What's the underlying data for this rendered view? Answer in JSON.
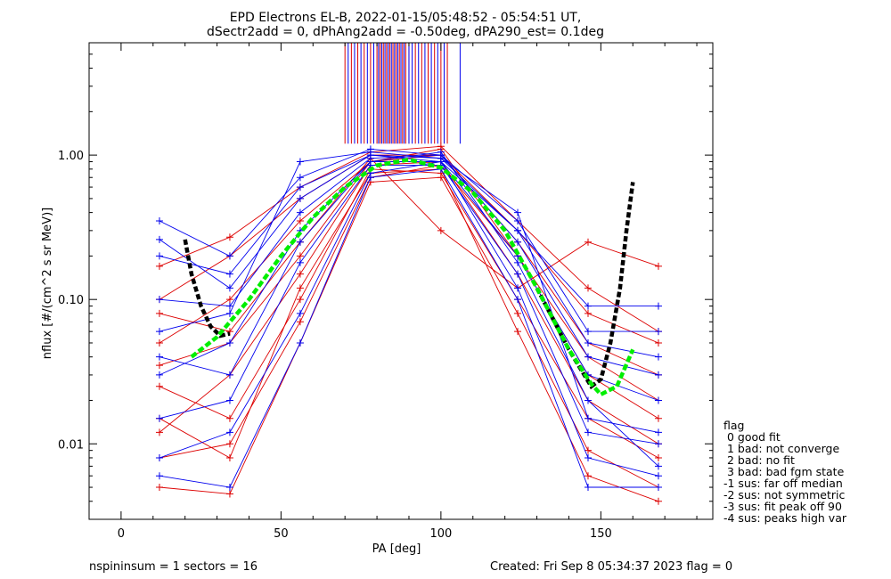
{
  "chart_data": {
    "type": "line",
    "title_line1": "EPD Electrons EL-B, 2022-01-15/05:48:52 - 05:54:51 UT,",
    "title_line2": "dSectr2add = 0, dPhAng2add = -0.50deg, dPA290_est=   0.1deg",
    "xlabel": "PA [deg]",
    "ylabel": "nflux [#/(cm^2 s sr MeV)]",
    "xlim": [
      -10,
      185
    ],
    "ylim": [
      0.003,
      6
    ],
    "yscale": "log",
    "x_ticks": [
      0,
      50,
      100,
      150
    ],
    "x_tick_labels": [
      "0",
      "50",
      "100",
      "150"
    ],
    "y_ticks": [
      0.01,
      0.1,
      1
    ],
    "y_tick_labels": [
      "0.01",
      "0.10",
      "1.00"
    ],
    "colors": {
      "red": "#dd0000",
      "blue": "#0000ee",
      "fit": "#00ee00",
      "model": "#000000"
    },
    "series": [
      {
        "color": "red",
        "x": [
          12,
          34,
          56,
          78,
          100,
          124,
          146,
          168
        ],
        "y": [
          0.05,
          0.1,
          0.35,
          0.9,
          1.0,
          0.25,
          0.05,
          0.03
        ]
      },
      {
        "color": "red",
        "x": [
          12,
          34,
          56,
          78,
          100,
          124,
          146,
          168
        ],
        "y": [
          0.012,
          0.03,
          0.15,
          0.85,
          0.9,
          0.15,
          0.02,
          0.01
        ]
      },
      {
        "color": "red",
        "x": [
          12,
          34,
          56,
          78,
          100,
          124,
          146,
          168
        ],
        "y": [
          0.17,
          0.27,
          0.6,
          1.05,
          1.15,
          0.35,
          0.12,
          0.06
        ]
      },
      {
        "color": "red",
        "x": [
          12,
          34,
          56,
          78,
          100,
          124,
          146,
          168
        ],
        "y": [
          0.005,
          0.0045,
          0.05,
          0.65,
          0.7,
          0.08,
          0.009,
          0.005
        ]
      },
      {
        "color": "red",
        "x": [
          12,
          34,
          56,
          78,
          100,
          124,
          146,
          168
        ],
        "y": [
          0.08,
          0.06,
          0.25,
          0.95,
          0.3,
          0.12,
          0.25,
          0.17
        ]
      },
      {
        "color": "red",
        "x": [
          12,
          34,
          56,
          78,
          100,
          124,
          146,
          168
        ],
        "y": [
          0.025,
          0.015,
          0.1,
          0.8,
          0.75,
          0.1,
          0.015,
          0.008
        ]
      },
      {
        "color": "red",
        "x": [
          12,
          34,
          56,
          78,
          100,
          124,
          146,
          168
        ],
        "y": [
          0.1,
          0.2,
          0.5,
          1.0,
          1.0,
          0.3,
          0.08,
          0.05
        ]
      },
      {
        "color": "red",
        "x": [
          12,
          34,
          56,
          78,
          100,
          124,
          146,
          168
        ],
        "y": [
          0.008,
          0.01,
          0.07,
          0.7,
          0.85,
          0.2,
          0.04,
          0.02
        ]
      },
      {
        "color": "red",
        "x": [
          12,
          34,
          56,
          78,
          100,
          124,
          146,
          168
        ],
        "y": [
          0.035,
          0.05,
          0.2,
          0.9,
          1.1,
          0.2,
          0.03,
          0.015
        ]
      },
      {
        "color": "red",
        "x": [
          12,
          34,
          56,
          78,
          100,
          124,
          146,
          168
        ],
        "y": [
          0.015,
          0.008,
          0.12,
          0.75,
          0.8,
          0.06,
          0.006,
          0.004
        ]
      },
      {
        "color": "blue",
        "x": [
          12,
          34,
          56,
          78,
          100,
          124,
          146,
          168
        ],
        "y": [
          0.35,
          0.2,
          0.7,
          1.1,
          1.0,
          0.35,
          0.06,
          0.06
        ]
      },
      {
        "color": "blue",
        "x": [
          12,
          34,
          56,
          78,
          100,
          124,
          146,
          168
        ],
        "y": [
          0.03,
          0.05,
          0.3,
          0.9,
          0.9,
          0.2,
          0.03,
          0.02
        ]
      },
      {
        "color": "blue",
        "x": [
          12,
          34,
          56,
          78,
          100,
          124,
          146,
          168
        ],
        "y": [
          0.26,
          0.12,
          0.5,
          1.0,
          0.95,
          0.3,
          0.09,
          0.09
        ]
      },
      {
        "color": "blue",
        "x": [
          12,
          34,
          56,
          78,
          100,
          124,
          146,
          168
        ],
        "y": [
          0.006,
          0.005,
          0.05,
          0.7,
          0.8,
          0.1,
          0.005,
          0.005
        ]
      },
      {
        "color": "blue",
        "x": [
          12,
          34,
          56,
          78,
          100,
          124,
          146,
          168
        ],
        "y": [
          0.1,
          0.09,
          0.4,
          0.95,
          1.0,
          0.25,
          0.04,
          0.03
        ]
      },
      {
        "color": "blue",
        "x": [
          12,
          34,
          56,
          78,
          100,
          124,
          146,
          168
        ],
        "y": [
          0.015,
          0.02,
          0.18,
          0.85,
          0.85,
          0.15,
          0.012,
          0.01
        ]
      },
      {
        "color": "blue",
        "x": [
          12,
          34,
          56,
          78,
          100,
          124,
          146,
          168
        ],
        "y": [
          0.06,
          0.08,
          0.9,
          1.05,
          0.95,
          0.4,
          0.015,
          0.012
        ]
      },
      {
        "color": "blue",
        "x": [
          12,
          34,
          56,
          78,
          100,
          124,
          146,
          168
        ],
        "y": [
          0.04,
          0.03,
          0.25,
          0.9,
          1.05,
          0.18,
          0.02,
          0.007
        ]
      },
      {
        "color": "blue",
        "x": [
          12,
          34,
          56,
          78,
          100,
          124,
          146,
          168
        ],
        "y": [
          0.2,
          0.15,
          0.6,
          1.0,
          0.9,
          0.3,
          0.05,
          0.04
        ]
      },
      {
        "color": "blue",
        "x": [
          12,
          34,
          56,
          78,
          100,
          124,
          146,
          168
        ],
        "y": [
          0.008,
          0.012,
          0.08,
          0.75,
          0.9,
          0.12,
          0.008,
          0.006
        ]
      }
    ],
    "fit_curve": {
      "color": "fit",
      "x": [
        22,
        30,
        40,
        50,
        60,
        70,
        80,
        90,
        100,
        110,
        120,
        130,
        140,
        147,
        150,
        155,
        160
      ],
      "y": [
        0.04,
        0.055,
        0.1,
        0.2,
        0.37,
        0.6,
        0.85,
        0.93,
        0.82,
        0.55,
        0.3,
        0.12,
        0.045,
        0.026,
        0.022,
        0.025,
        0.045
      ]
    },
    "model_curve": {
      "color": "model",
      "x": [
        20,
        22,
        25,
        28,
        31,
        34
      ],
      "y": [
        0.26,
        0.15,
        0.09,
        0.065,
        0.056,
        0.058
      ]
    },
    "model_curve_right": {
      "color": "model",
      "x": [
        130,
        140,
        147,
        150,
        153,
        156,
        158,
        160
      ],
      "y": [
        0.12,
        0.045,
        0.025,
        0.028,
        0.05,
        0.12,
        0.3,
        0.65
      ]
    },
    "spikes": {
      "x_min": 70,
      "x_max": 106,
      "y_low": 1.2,
      "red": [
        70,
        72,
        74,
        76,
        78,
        80,
        81,
        82,
        83,
        84,
        85,
        86,
        87,
        88,
        89,
        90,
        92,
        94,
        96,
        98,
        100,
        102
      ],
      "blue": [
        71,
        73,
        75,
        77,
        79,
        80.5,
        81.5,
        82.5,
        83.5,
        84.5,
        85.5,
        86.5,
        87.5,
        88.5,
        90,
        91,
        93,
        95,
        97,
        99,
        101,
        106
      ]
    }
  },
  "legend": {
    "title": "flag",
    "items": [
      " 0 good fit",
      " 1 bad: not converge",
      " 2 bad: no fit",
      " 3 bad: bad fgm state",
      "-1 sus: far off median",
      "-2 sus: not symmetric",
      "-3 sus: fit peak off 90",
      "-4 sus: peaks high var"
    ]
  },
  "footer": {
    "left": "nspininsum =  1  sectors = 16",
    "right": "Created: Fri Sep  8 05:34:37 2023   flag = 0"
  }
}
